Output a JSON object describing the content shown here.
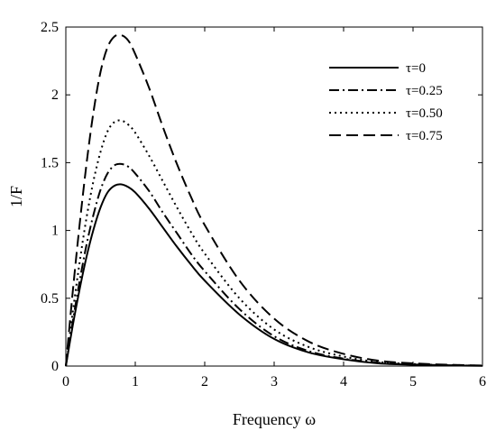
{
  "chart_data": {
    "type": "line",
    "xlabel": "Frequency ω",
    "ylabel": "1/F",
    "xlim": [
      0,
      6
    ],
    "ylim": [
      0,
      2.5
    ],
    "xticks": [
      0,
      1,
      2,
      3,
      4,
      5,
      6
    ],
    "yticks": [
      0,
      0.5,
      1,
      1.5,
      2,
      2.5
    ],
    "xtick_labels": [
      "0",
      "1",
      "2",
      "3",
      "4",
      "5",
      "6"
    ],
    "ytick_labels": [
      "0",
      "0.5",
      "1",
      "1.5",
      "2",
      "2.5"
    ],
    "grid": false,
    "legend_position": "top-right",
    "series": [
      {
        "name": "τ=0",
        "style": "solid",
        "x": [
          0,
          0.1,
          0.2,
          0.3,
          0.4,
          0.5,
          0.6,
          0.7,
          0.8,
          0.9,
          1.0,
          1.2,
          1.4,
          1.6,
          1.8,
          2.0,
          2.5,
          3.0,
          3.5,
          4.0,
          4.5,
          5.0,
          5.5,
          6.0
        ],
        "y": [
          0,
          0.3,
          0.57,
          0.81,
          1.01,
          1.17,
          1.28,
          1.33,
          1.34,
          1.32,
          1.28,
          1.16,
          1.02,
          0.88,
          0.75,
          0.63,
          0.38,
          0.2,
          0.1,
          0.05,
          0.02,
          0.01,
          0.005,
          0.002
        ]
      },
      {
        "name": "τ=0.25",
        "style": "dashdot",
        "x": [
          0,
          0.1,
          0.2,
          0.3,
          0.4,
          0.5,
          0.6,
          0.7,
          0.8,
          0.9,
          1.0,
          1.2,
          1.4,
          1.6,
          1.8,
          2.0,
          2.5,
          3.0,
          3.5,
          4.0,
          4.5,
          5.0,
          5.5,
          6.0
        ],
        "y": [
          0,
          0.33,
          0.63,
          0.9,
          1.12,
          1.3,
          1.42,
          1.48,
          1.49,
          1.47,
          1.42,
          1.29,
          1.13,
          0.98,
          0.83,
          0.7,
          0.42,
          0.22,
          0.11,
          0.055,
          0.025,
          0.012,
          0.006,
          0.003
        ]
      },
      {
        "name": "τ=0.50",
        "style": "dotted",
        "x": [
          0,
          0.1,
          0.2,
          0.3,
          0.4,
          0.5,
          0.6,
          0.7,
          0.8,
          0.9,
          1.0,
          1.2,
          1.4,
          1.6,
          1.8,
          2.0,
          2.5,
          3.0,
          3.5,
          4.0,
          4.5,
          5.0,
          5.5,
          6.0
        ],
        "y": [
          0,
          0.4,
          0.77,
          1.1,
          1.37,
          1.58,
          1.73,
          1.8,
          1.81,
          1.78,
          1.72,
          1.55,
          1.36,
          1.17,
          0.99,
          0.83,
          0.5,
          0.27,
          0.14,
          0.07,
          0.03,
          0.015,
          0.007,
          0.003
        ]
      },
      {
        "name": "τ=0.75",
        "style": "dashed",
        "x": [
          0,
          0.1,
          0.2,
          0.3,
          0.4,
          0.5,
          0.6,
          0.7,
          0.8,
          0.9,
          1.0,
          1.2,
          1.4,
          1.6,
          1.8,
          2.0,
          2.5,
          3.0,
          3.5,
          4.0,
          4.5,
          5.0,
          5.5,
          6.0
        ],
        "y": [
          0,
          0.55,
          1.05,
          1.5,
          1.88,
          2.17,
          2.35,
          2.43,
          2.44,
          2.4,
          2.3,
          2.05,
          1.76,
          1.49,
          1.25,
          1.04,
          0.63,
          0.35,
          0.18,
          0.09,
          0.04,
          0.02,
          0.01,
          0.004
        ]
      }
    ]
  }
}
